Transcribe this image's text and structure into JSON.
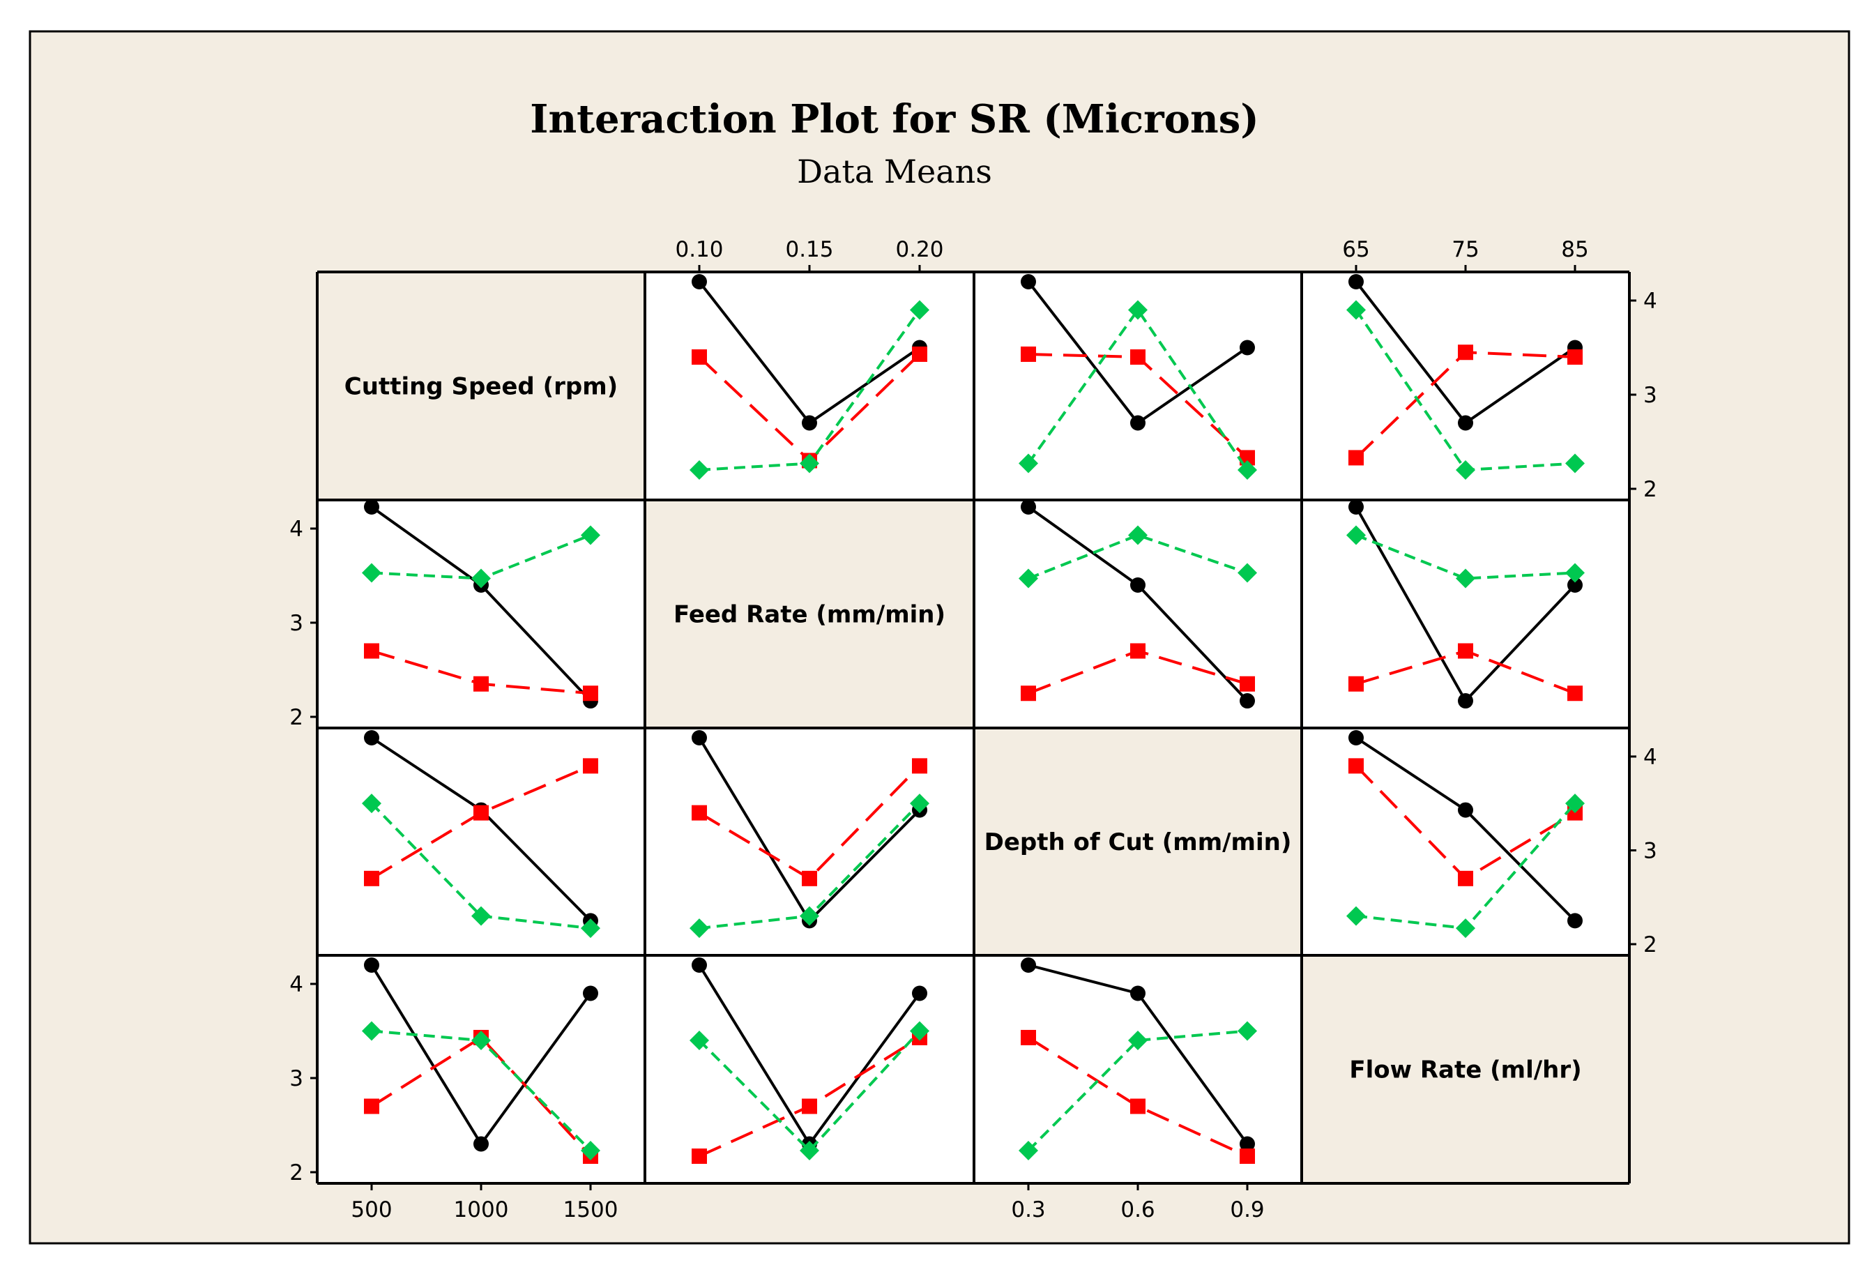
{
  "chart_data": {
    "type": "line",
    "title": "Interaction Plot for SR (Microns)",
    "subtitle": "Data Means",
    "variables": [
      {
        "name": "Cutting Speed (rpm)",
        "levels": [
          "500",
          "1000",
          "1500"
        ]
      },
      {
        "name": "Feed Rate (mm/min)",
        "levels": [
          "0.10",
          "0.15",
          "0.20"
        ]
      },
      {
        "name": "Depth of Cut (mm/min)",
        "levels": [
          "0.3",
          "0.6",
          "0.9"
        ]
      },
      {
        "name": "Flow Rate (ml/hr)",
        "levels": [
          "65",
          "75",
          "85"
        ]
      }
    ],
    "ylim": [
      2,
      4.2
    ],
    "yticks": [
      2,
      3,
      4
    ],
    "colors": [
      "#000000",
      "#ff0000",
      "#00c850"
    ],
    "cells": [
      {
        "row": 0,
        "col": 1,
        "series": [
          [
            4.2,
            2.7,
            3.5
          ],
          [
            3.4,
            2.3,
            3.43
          ],
          [
            2.2,
            2.27,
            3.9
          ]
        ]
      },
      {
        "row": 0,
        "col": 2,
        "series": [
          [
            4.2,
            2.7,
            3.5
          ],
          [
            3.43,
            3.4,
            2.33
          ],
          [
            2.27,
            3.9,
            2.2
          ]
        ]
      },
      {
        "row": 0,
        "col": 3,
        "series": [
          [
            4.2,
            2.7,
            3.5
          ],
          [
            2.33,
            3.45,
            3.4
          ],
          [
            3.9,
            2.2,
            2.27
          ]
        ]
      },
      {
        "row": 1,
        "col": 0,
        "series": [
          [
            4.23,
            3.4,
            2.17
          ],
          [
            2.7,
            2.35,
            2.25
          ],
          [
            3.53,
            3.47,
            3.93
          ]
        ]
      },
      {
        "row": 1,
        "col": 2,
        "series": [
          [
            4.23,
            3.4,
            2.17
          ],
          [
            2.25,
            2.7,
            2.35
          ],
          [
            3.47,
            3.93,
            3.53
          ]
        ]
      },
      {
        "row": 1,
        "col": 3,
        "series": [
          [
            4.23,
            2.17,
            3.4
          ],
          [
            2.35,
            2.7,
            2.25
          ],
          [
            3.93,
            3.47,
            3.53
          ]
        ]
      },
      {
        "row": 2,
        "col": 0,
        "series": [
          [
            4.2,
            3.43,
            2.25
          ],
          [
            2.7,
            3.4,
            3.9
          ],
          [
            3.5,
            2.3,
            2.17
          ]
        ]
      },
      {
        "row": 2,
        "col": 1,
        "series": [
          [
            4.2,
            2.25,
            3.43
          ],
          [
            3.4,
            2.7,
            3.9
          ],
          [
            2.17,
            2.3,
            3.5
          ]
        ]
      },
      {
        "row": 2,
        "col": 3,
        "series": [
          [
            4.2,
            3.43,
            2.25
          ],
          [
            3.9,
            2.7,
            3.4
          ],
          [
            2.3,
            2.17,
            3.5
          ]
        ]
      },
      {
        "row": 3,
        "col": 0,
        "series": [
          [
            4.2,
            2.3,
            3.9
          ],
          [
            2.7,
            3.43,
            2.17
          ],
          [
            3.5,
            3.4,
            2.23
          ]
        ]
      },
      {
        "row": 3,
        "col": 1,
        "series": [
          [
            4.2,
            2.3,
            3.9
          ],
          [
            2.17,
            2.7,
            3.43
          ],
          [
            3.4,
            2.23,
            3.5
          ]
        ]
      },
      {
        "row": 3,
        "col": 2,
        "series": [
          [
            4.2,
            3.9,
            2.3
          ],
          [
            3.43,
            2.7,
            2.17
          ],
          [
            2.23,
            3.4,
            3.5
          ]
        ]
      }
    ]
  }
}
